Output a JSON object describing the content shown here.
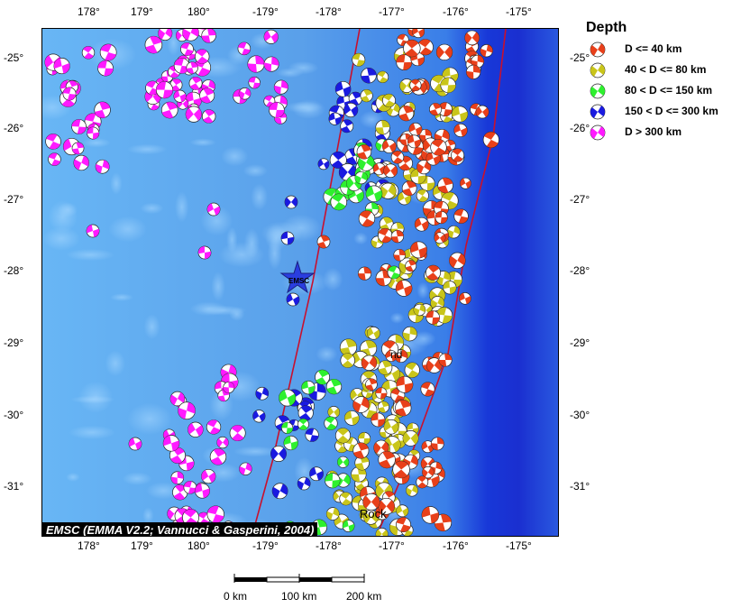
{
  "map": {
    "lon_ticks": [
      "178°",
      "179°",
      "180°",
      "-179°",
      "-178°",
      "-177°",
      "-176°",
      "-175°"
    ],
    "lat_ticks": [
      "-25°",
      "-26°",
      "-27°",
      "-28°",
      "-29°",
      "-30°",
      "-31°"
    ],
    "lon_range": [
      177.4,
      184.7
    ],
    "lat_range": [
      -24.6,
      -31.7
    ],
    "background": "bathymetry",
    "place_labels": [
      "nd",
      "Rock"
    ],
    "epicenter_label": "EMSC",
    "credit": "EMSC (EMMA V2.2; Vannucci & Gasperini, 2004)"
  },
  "legend": {
    "title": "Depth",
    "items": [
      {
        "label": "D <= 40 km",
        "color": "#e8401a"
      },
      {
        "label": "40 < D <= 80 km",
        "color": "#c9c51a"
      },
      {
        "label": "80 < D <= 150 km",
        "color": "#2ef02e"
      },
      {
        "label": "150 < D <= 300 km",
        "color": "#1a1ae0"
      },
      {
        "label": "D > 300 km",
        "color": "#ff1aff"
      }
    ]
  },
  "scale_bar": {
    "labels": [
      "0 km",
      "100 km",
      "200 km"
    ]
  },
  "colors": {
    "ocean_shallow": "#5aa0ea",
    "ocean_deep": "#1a2fd0",
    "trench_line": "#c8102e",
    "star": "#2a3ee0"
  }
}
